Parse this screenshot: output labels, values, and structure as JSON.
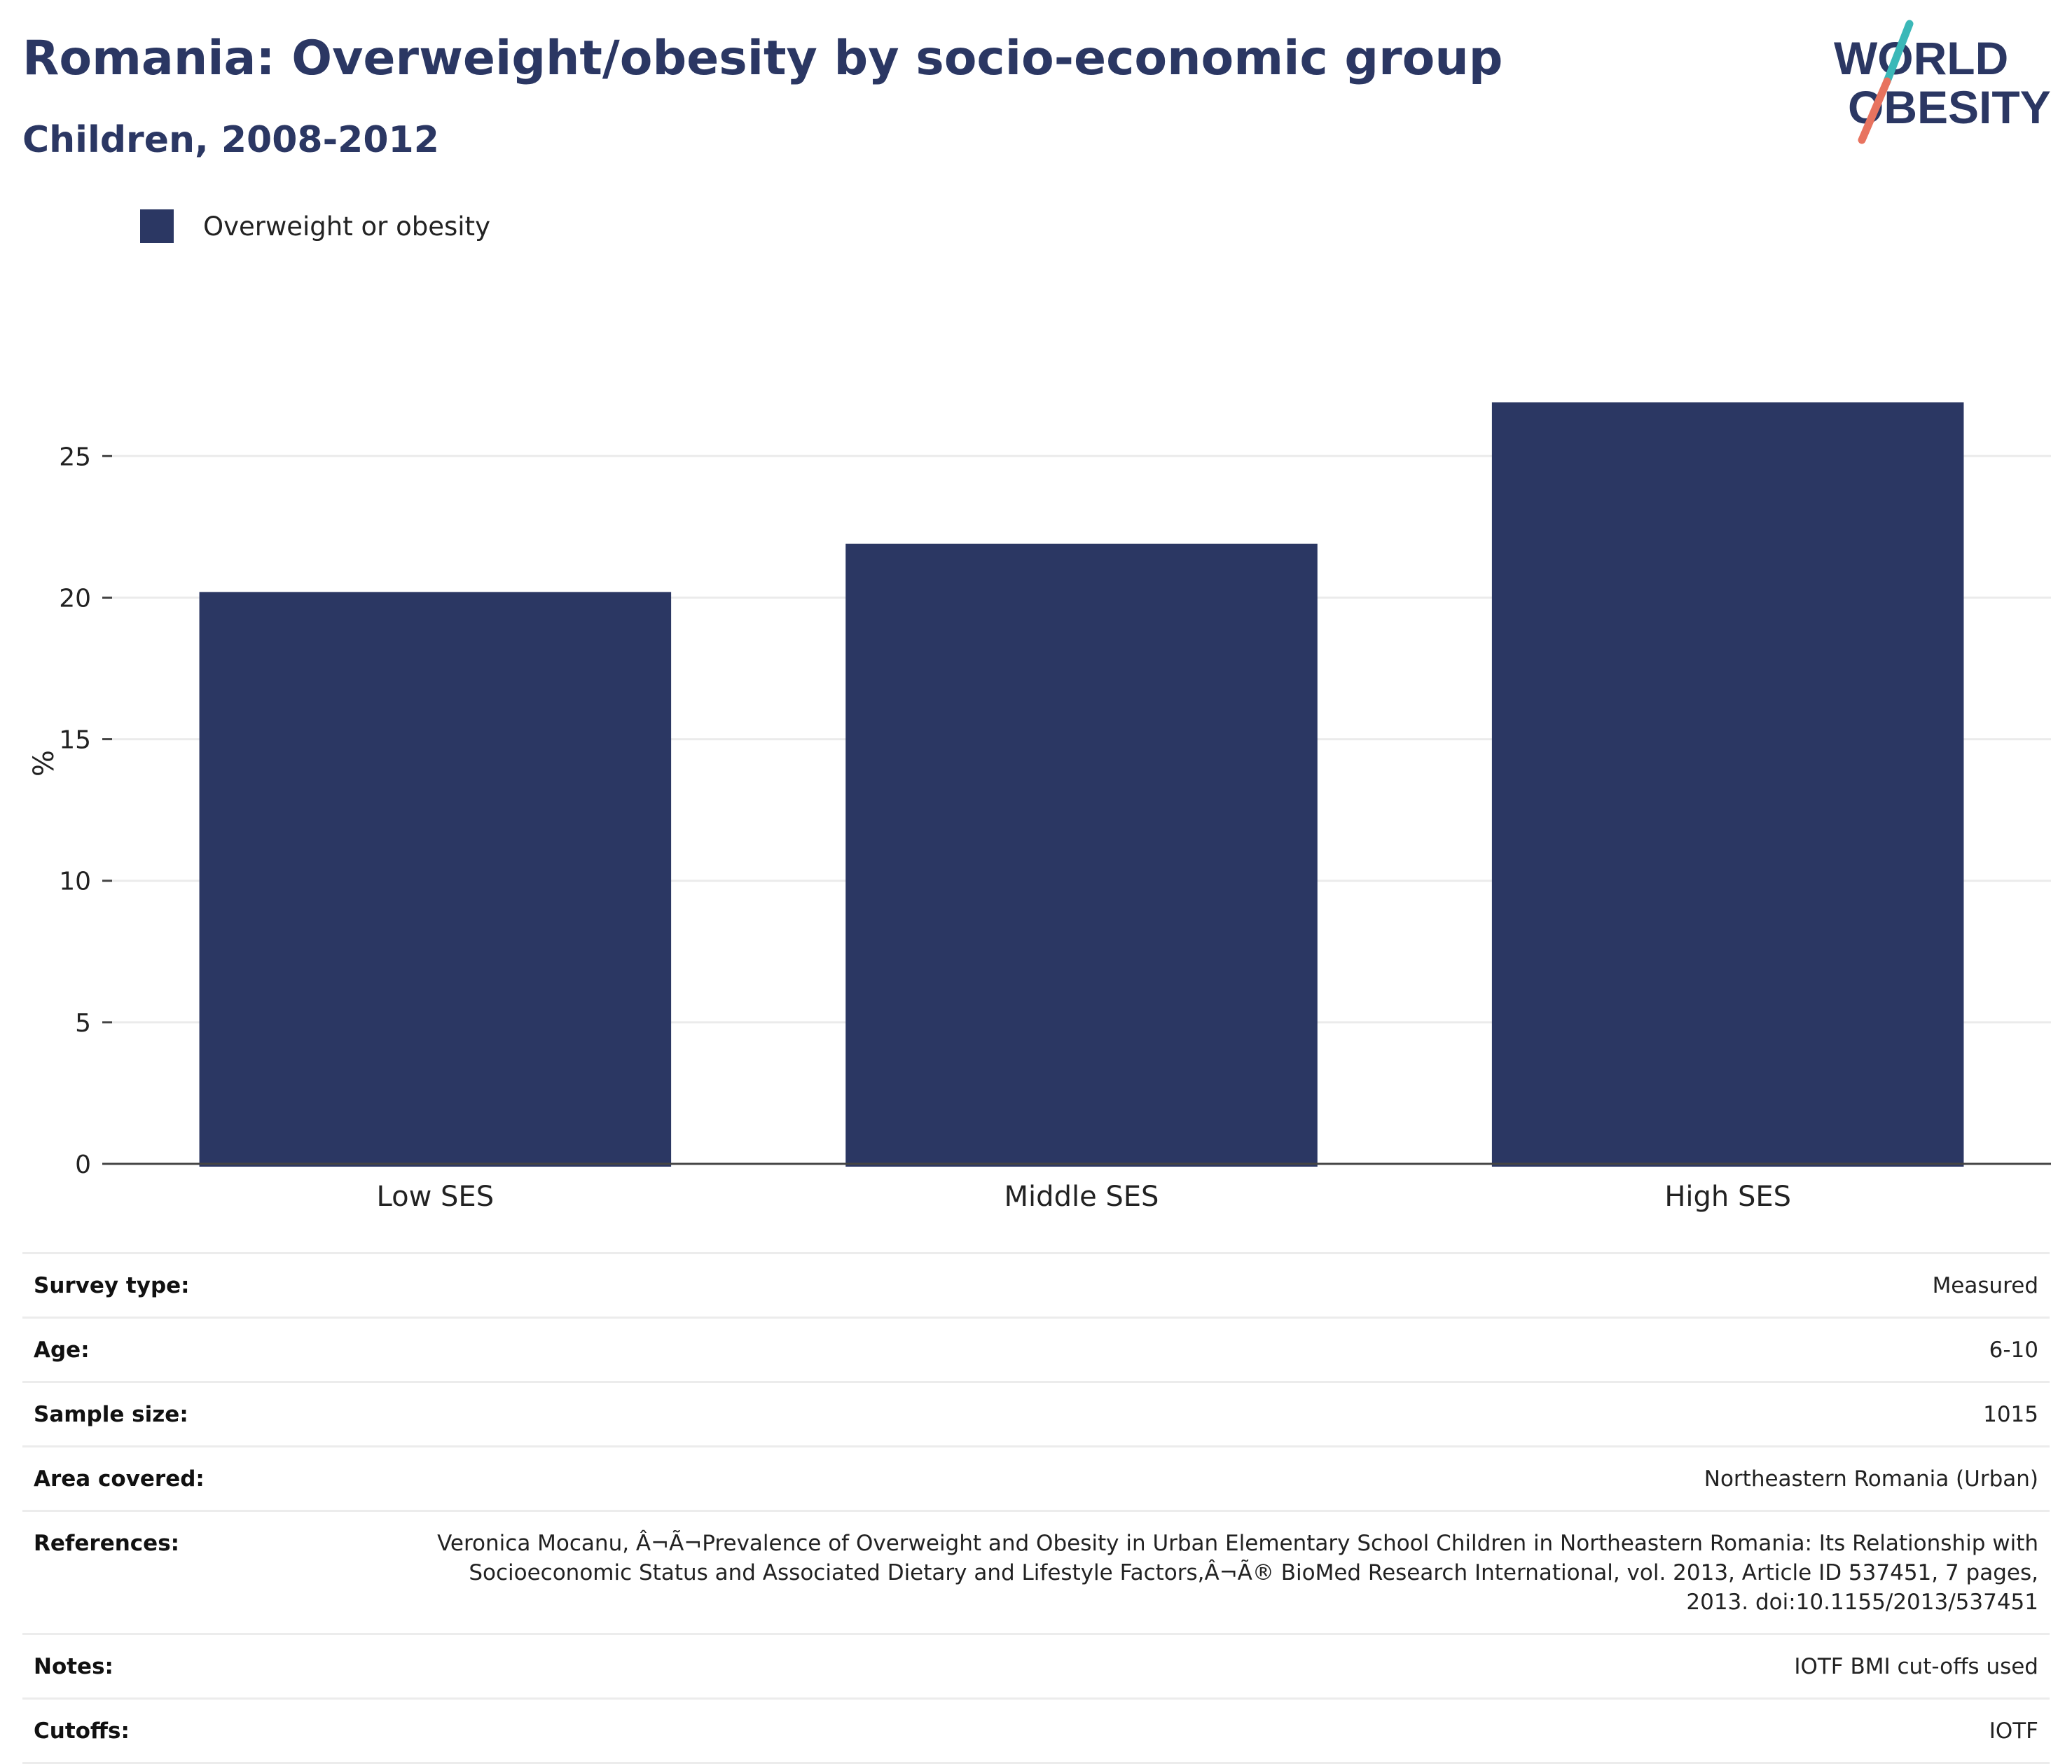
{
  "header": {
    "title": "Romania: Overweight/obesity by socio-economic group",
    "subtitle": "Children, 2008-2012"
  },
  "logo": {
    "line1": "WORLD",
    "line2": "OBESITY",
    "colors": {
      "text": "#2b3763",
      "slash_top": "#3bb8b8",
      "slash_bottom": "#e8735f"
    }
  },
  "legend": {
    "items": [
      {
        "label": "Overweight or obesity",
        "color": "#2b3763"
      }
    ]
  },
  "chart_data": {
    "type": "bar",
    "categories": [
      "Low SES",
      "Middle SES",
      "High SES"
    ],
    "series": [
      {
        "name": "Overweight or obesity",
        "values": [
          20.2,
          21.9,
          26.9
        ],
        "color": "#2b3763"
      }
    ],
    "ylabel": "%",
    "xlabel": "",
    "ylim": [
      0,
      28
    ],
    "yticks": [
      0,
      5,
      10,
      15,
      20,
      25
    ],
    "grid": true,
    "legend_position": "top-left"
  },
  "details": [
    {
      "label": "Survey type:",
      "value": "Measured"
    },
    {
      "label": "Age:",
      "value": "6-10"
    },
    {
      "label": "Sample size:",
      "value": "1015"
    },
    {
      "label": "Area covered:",
      "value": "Northeastern Romania (Urban)"
    },
    {
      "label": "References:",
      "value": "Veronica Mocanu, Â¬Ã¬Prevalence of Overweight and Obesity in Urban Elementary School Children in Northeastern Romania: Its Relationship with Socioeconomic Status and Associated Dietary and Lifestyle Factors,Â¬Ã® BioMed Research International, vol. 2013, Article ID 537451, 7 pages, 2013. doi:10.1155/2013/537451"
    },
    {
      "label": "Notes:",
      "value": "IOTF BMI cut-offs used"
    },
    {
      "label": "Cutoffs:",
      "value": "IOTF"
    }
  ]
}
